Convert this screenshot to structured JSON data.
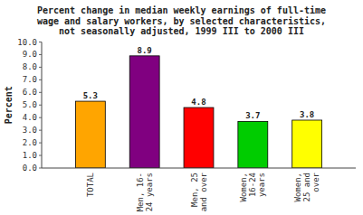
{
  "chart_data": {
    "type": "bar",
    "title": "Percent change in median weekly earnings of full-time\nwage and salary workers, by selected characteristics,\nnot seasonally adjusted, 1999 III to 2000 III",
    "categories": [
      "TOTAL",
      "Men, 16-\n24 years",
      "Men, 25\nand over",
      "Women,\n16-24\nyears",
      "Women,\n25 and\nover"
    ],
    "values": [
      5.3,
      8.9,
      4.8,
      3.7,
      3.8
    ],
    "colors": [
      "#FFA500",
      "#800080",
      "#FF0000",
      "#00CC00",
      "#FFFF00"
    ],
    "ylabel": "Percent",
    "ylim": [
      0.0,
      10.0
    ],
    "yticks": [
      {
        "value": 0.0,
        "label": "0.0"
      },
      {
        "value": 1.0,
        "label": "1.0"
      },
      {
        "value": 2.0,
        "label": "2.0"
      },
      {
        "value": 3.0,
        "label": "3.0"
      },
      {
        "value": 4.0,
        "label": "4.0"
      },
      {
        "value": 5.0,
        "label": "5.0"
      },
      {
        "value": 6.0,
        "label": "6.0"
      },
      {
        "value": 7.0,
        "label": "7.0"
      },
      {
        "value": 8.0,
        "label": "8.0"
      },
      {
        "value": 9.0,
        "label": "9.0"
      },
      {
        "value": 10.0,
        "label": "10.0"
      }
    ],
    "data_labels": true
  }
}
